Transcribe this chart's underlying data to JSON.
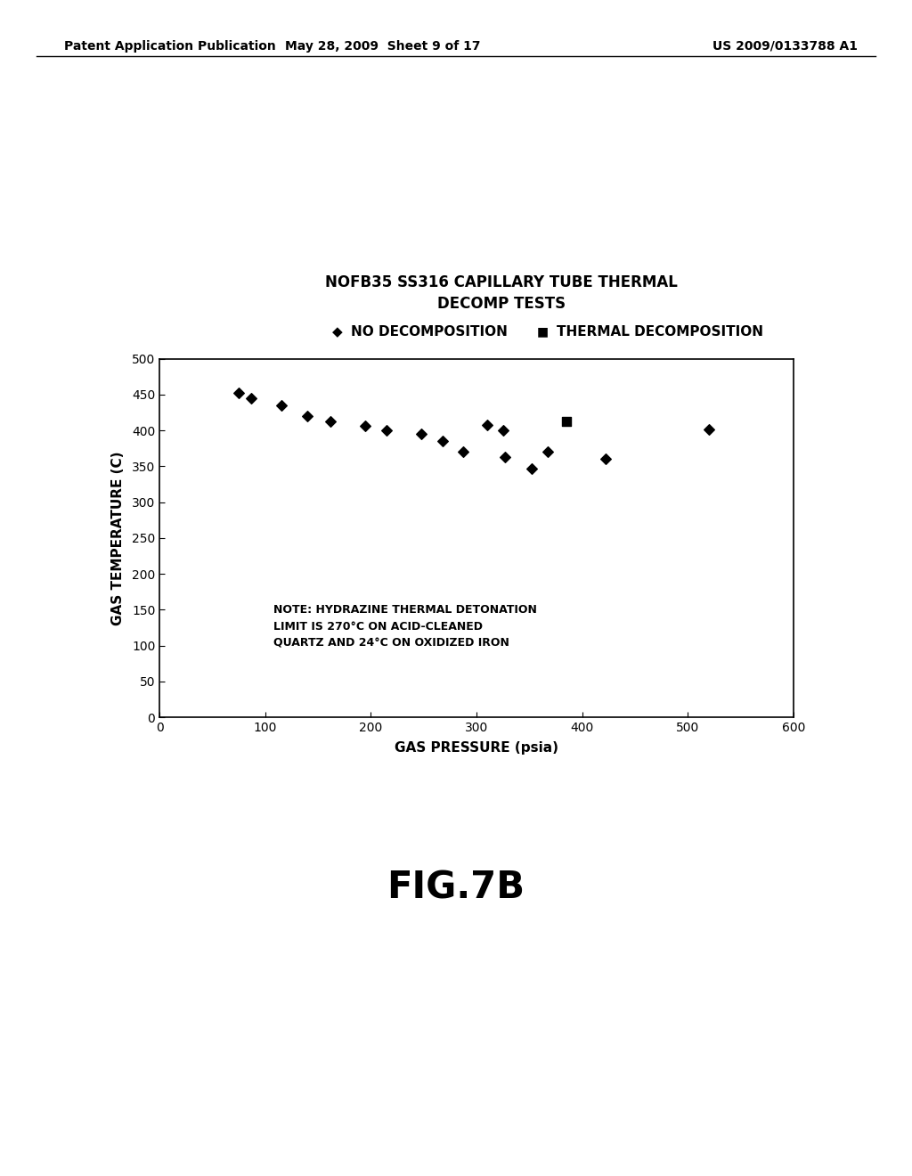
{
  "title_line1": "NOFB35 SS316 CAPILLARY TUBE THERMAL",
  "title_line2": "DECOMP TESTS",
  "xlabel": "GAS PRESSURE (psia)",
  "ylabel": "GAS TEMPERATURE (C)",
  "note": "NOTE: HYDRAZINE THERMAL DETONATION\nLIMIT IS 270°C ON ACID-CLEANED\nQUARTZ AND 24°C ON OXIDIZED IRON",
  "xlim": [
    0,
    600
  ],
  "ylim": [
    0,
    500
  ],
  "xticks": [
    0,
    100,
    200,
    300,
    400,
    500,
    600
  ],
  "yticks": [
    0,
    50,
    100,
    150,
    200,
    250,
    300,
    350,
    400,
    450,
    500
  ],
  "no_decomp_x": [
    75,
    87,
    115,
    140,
    162,
    195,
    215,
    248,
    268,
    287,
    310,
    325,
    327,
    352,
    367,
    422,
    520
  ],
  "no_decomp_y": [
    452,
    445,
    435,
    420,
    412,
    406,
    400,
    395,
    385,
    370,
    408,
    400,
    363,
    347,
    370,
    360,
    402
  ],
  "thermal_decomp_x": [
    385
  ],
  "thermal_decomp_y": [
    412
  ],
  "legend_no_decomp": "NO DECOMPOSITION",
  "legend_thermal_decomp": "THERMAL DECOMPOSITION",
  "fig_label": "FIG.7B",
  "header_left": "Patent Application Publication",
  "header_mid": "May 28, 2009  Sheet 9 of 17",
  "header_right": "US 2009/0133788 A1",
  "background_color": "#ffffff",
  "text_color": "#000000",
  "marker_color": "#000000"
}
